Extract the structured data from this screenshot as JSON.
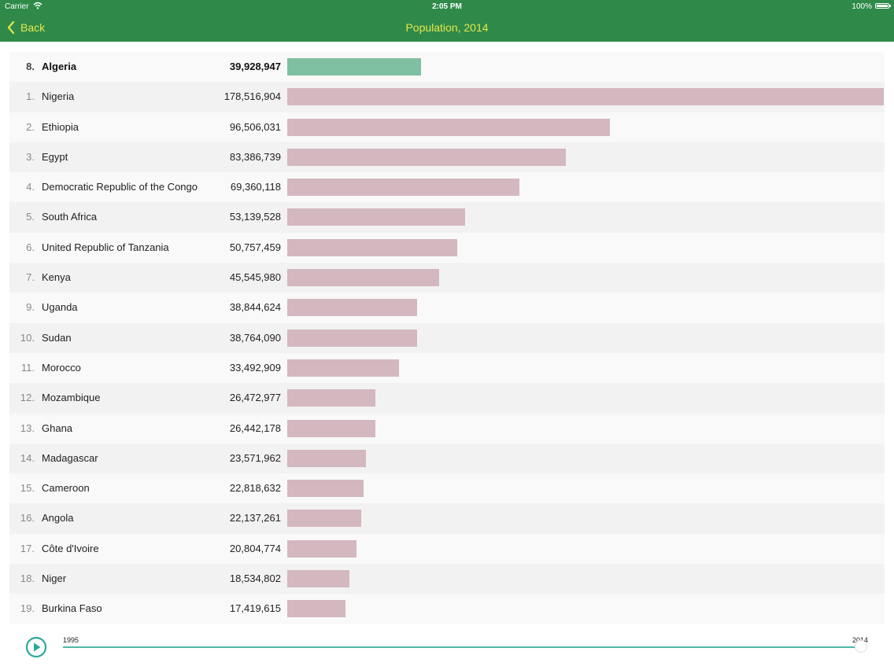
{
  "status": {
    "carrier": "Carrier",
    "time": "2:05 PM",
    "battery": "100%"
  },
  "nav": {
    "back_label": "Back",
    "title": "Population, 2014"
  },
  "colors": {
    "header": "#2f8a4a",
    "header_text": "#e6e64a",
    "bar": "#d4b8bf",
    "highlight_bar": "#7fbfa2",
    "slider": "#4cb8a8"
  },
  "icons": {
    "back": "chevron-left-icon",
    "play": "play-icon",
    "wifi": "wifi-icon",
    "battery": "battery-icon"
  },
  "chart_data": {
    "type": "bar",
    "title": "Population, 2014",
    "max_value": 178516904,
    "rows": [
      {
        "rank": "8.",
        "country": "Algeria",
        "population": "39,928,947",
        "value": 39928947,
        "highlight": true
      },
      {
        "rank": "1.",
        "country": "Nigeria",
        "population": "178,516,904",
        "value": 178516904
      },
      {
        "rank": "2.",
        "country": "Ethiopia",
        "population": "96,506,031",
        "value": 96506031
      },
      {
        "rank": "3.",
        "country": "Egypt",
        "population": "83,386,739",
        "value": 83386739
      },
      {
        "rank": "4.",
        "country": "Democratic Republic of the Congo",
        "population": "69,360,118",
        "value": 69360118
      },
      {
        "rank": "5.",
        "country": "South Africa",
        "population": "53,139,528",
        "value": 53139528
      },
      {
        "rank": "6.",
        "country": "United Republic of Tanzania",
        "population": "50,757,459",
        "value": 50757459
      },
      {
        "rank": "7.",
        "country": "Kenya",
        "population": "45,545,980",
        "value": 45545980
      },
      {
        "rank": "9.",
        "country": "Uganda",
        "population": "38,844,624",
        "value": 38844624
      },
      {
        "rank": "10.",
        "country": "Sudan",
        "population": "38,764,090",
        "value": 38764090
      },
      {
        "rank": "11.",
        "country": "Morocco",
        "population": "33,492,909",
        "value": 33492909
      },
      {
        "rank": "12.",
        "country": "Mozambique",
        "population": "26,472,977",
        "value": 26472977
      },
      {
        "rank": "13.",
        "country": "Ghana",
        "population": "26,442,178",
        "value": 26442178
      },
      {
        "rank": "14.",
        "country": "Madagascar",
        "population": "23,571,962",
        "value": 23571962
      },
      {
        "rank": "15.",
        "country": "Cameroon",
        "population": "22,818,632",
        "value": 22818632
      },
      {
        "rank": "16.",
        "country": "Angola",
        "population": "22,137,261",
        "value": 22137261
      },
      {
        "rank": "17.",
        "country": "Côte d'Ivoire",
        "population": "20,804,774",
        "value": 20804774
      },
      {
        "rank": "18.",
        "country": "Niger",
        "population": "18,534,802",
        "value": 18534802
      },
      {
        "rank": "19.",
        "country": "Burkina Faso",
        "population": "17,419,615",
        "value": 17419615
      }
    ]
  },
  "timeline": {
    "start_label": "1995",
    "end_label": "2014",
    "position": 1.0
  }
}
